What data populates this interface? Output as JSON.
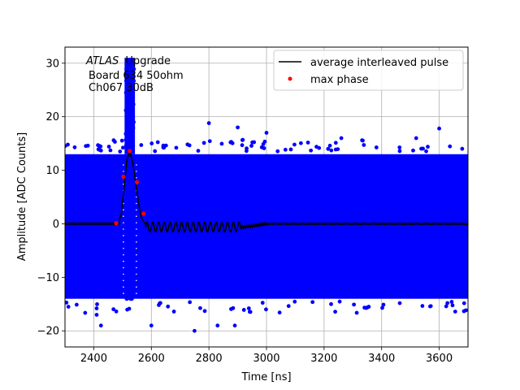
{
  "chart_data": {
    "type": "scatter",
    "xlabel": "Time [ns]",
    "ylabel": "Amplitude [ADC Counts]",
    "xlim": [
      2300,
      3700
    ],
    "ylim": [
      -23,
      33
    ],
    "xticks": [
      2400,
      2600,
      2800,
      3000,
      3200,
      3400,
      3600
    ],
    "yticks": [
      -20,
      -10,
      0,
      10,
      20,
      30
    ],
    "grid": true,
    "legend_position": "top-right",
    "annotation": {
      "atlas": "ATLAS",
      "upgrade": "Upgrade",
      "board": "Board 634 50ohm",
      "channel": "Ch067 30dB"
    },
    "series": [
      {
        "name": "average interleaved pulse",
        "kind": "line",
        "color": "#000000",
        "x": [
          2300,
          2400,
          2460,
          2480,
          2495,
          2505,
          2515,
          2525,
          2535,
          2545,
          2555,
          2565,
          2575,
          2590,
          2605,
          2620,
          2640,
          2660,
          2680,
          2700,
          2720,
          2740,
          2760,
          2780,
          2800,
          2820,
          2840,
          2860,
          2880,
          2900,
          2920,
          2940,
          2960,
          2980,
          3000,
          3100,
          3200,
          3300,
          3400,
          3500,
          3600,
          3700
        ],
        "y": [
          0,
          0,
          0,
          0.3,
          1.5,
          6.5,
          12.0,
          13.5,
          11.5,
          8.0,
          4.0,
          1.2,
          0.3,
          -1.0,
          -1.3,
          -1.2,
          -1.2,
          -1.2,
          -1.2,
          -1.2,
          -1.2,
          -1.2,
          -1.2,
          -1.2,
          -1.2,
          -1.2,
          -1.2,
          -1.2,
          -1.2,
          -1.0,
          -0.8,
          -0.5,
          -0.3,
          -0.1,
          0,
          0,
          0,
          0,
          0,
          0,
          0,
          0
        ]
      },
      {
        "name": "max phase",
        "kind": "points",
        "color": "#ff0000",
        "x": [
          2478,
          2503,
          2525,
          2550,
          2573
        ],
        "y": [
          0.1,
          8.8,
          13.6,
          7.8,
          1.9
        ]
      },
      {
        "kind": "scatter-band",
        "color": "#0000ff",
        "x_range": [
          2300,
          3700
        ],
        "noise_band": [
          -14,
          13
        ],
        "sparse_outliers_y": [
          -20,
          -19,
          -16,
          -15,
          14.5,
          16,
          18.8,
          15,
          16
        ]
      }
    ]
  }
}
